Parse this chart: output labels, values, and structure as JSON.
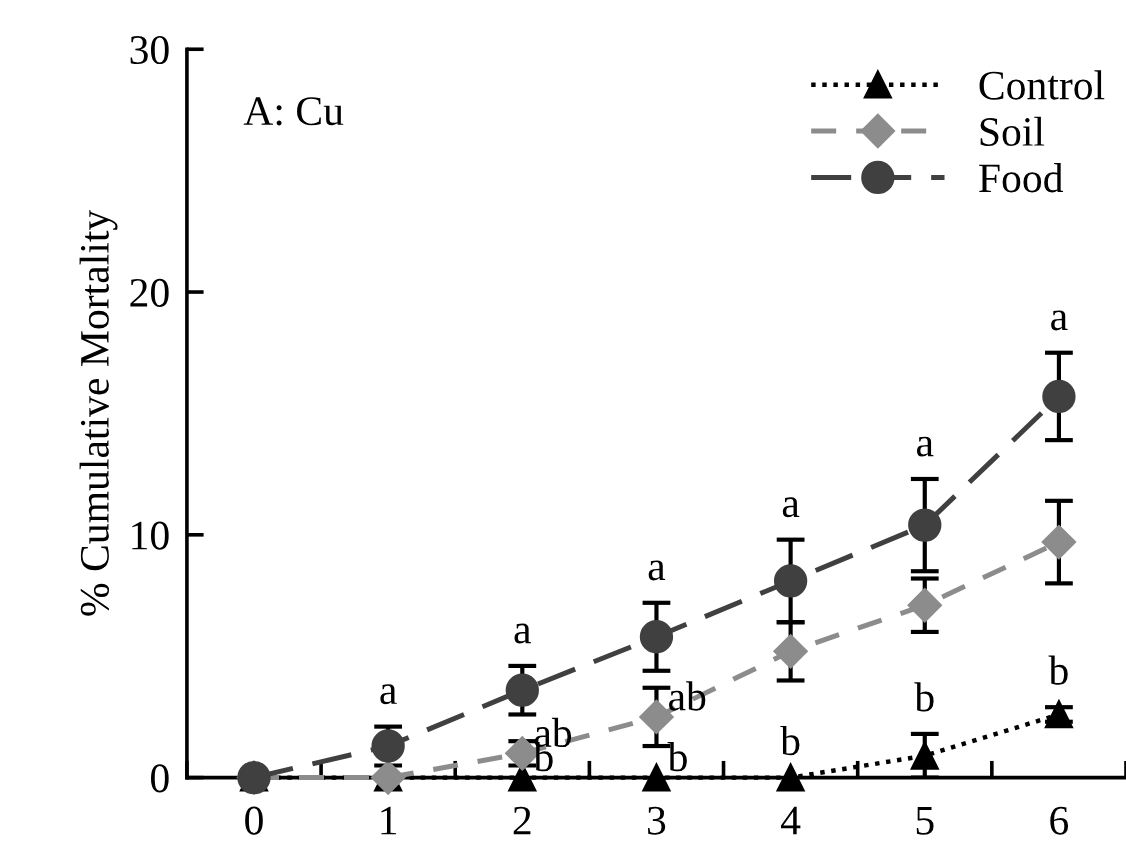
{
  "chart_data": {
    "type": "line",
    "ylabel": "% Cumulative Mortality",
    "categories": [
      "0",
      "1",
      "2",
      "3",
      "4",
      "5",
      "6"
    ],
    "ylim": [
      0,
      30
    ],
    "yticks": [
      0,
      10,
      20,
      30
    ],
    "grid": false,
    "legend": "top right",
    "series": [
      {
        "name": "Control",
        "color": "#000000",
        "marker": "triangle",
        "line_style": "dotted",
        "values": [
          0,
          0,
          0,
          0,
          0,
          0.9,
          2.6
        ],
        "errors": [
          null,
          null,
          null,
          null,
          null,
          0.9,
          0.3
        ]
      },
      {
        "name": "Soil",
        "color": "#8c8c8c",
        "marker": "diamond",
        "line_style": "dashed",
        "values": [
          0,
          0,
          1.0,
          2.5,
          5.2,
          7.1,
          9.7
        ],
        "errors": [
          null,
          null,
          0.5,
          1.2,
          1.2,
          1.1,
          1.7
        ]
      },
      {
        "name": "Food",
        "color": "#404040",
        "marker": "circle",
        "line_style": "dashed",
        "values": [
          0,
          1.3,
          3.6,
          5.8,
          8.1,
          10.4,
          15.7
        ],
        "errors": [
          null,
          0.8,
          1.0,
          1.4,
          1.7,
          1.9,
          1.8
        ]
      }
    ],
    "annotations": [
      "A: Cu",
      {
        "text": "a",
        "x": "1",
        "y": 1.3
      },
      {
        "text": "a",
        "x": "2",
        "y": 3.6
      },
      {
        "text": "a",
        "x": "3",
        "y": 5.8
      },
      {
        "text": "a",
        "x": "4",
        "y": 8.1
      },
      {
        "text": "a",
        "x": "5",
        "y": 10.4
      },
      {
        "text": "a",
        "x": "6",
        "y": 15.7
      },
      {
        "text": "ab",
        "x": "2",
        "y": 1.0
      },
      {
        "text": "ab",
        "x": "3",
        "y": 2.5
      },
      {
        "text": "b",
        "x": "2",
        "y": 0
      },
      {
        "text": "b",
        "x": "3",
        "y": 0
      },
      {
        "text": "b",
        "x": "4",
        "y": 0
      },
      {
        "text": "b",
        "x": "5",
        "y": 0.9
      },
      {
        "text": "b",
        "x": "6",
        "y": 2.6
      }
    ]
  }
}
